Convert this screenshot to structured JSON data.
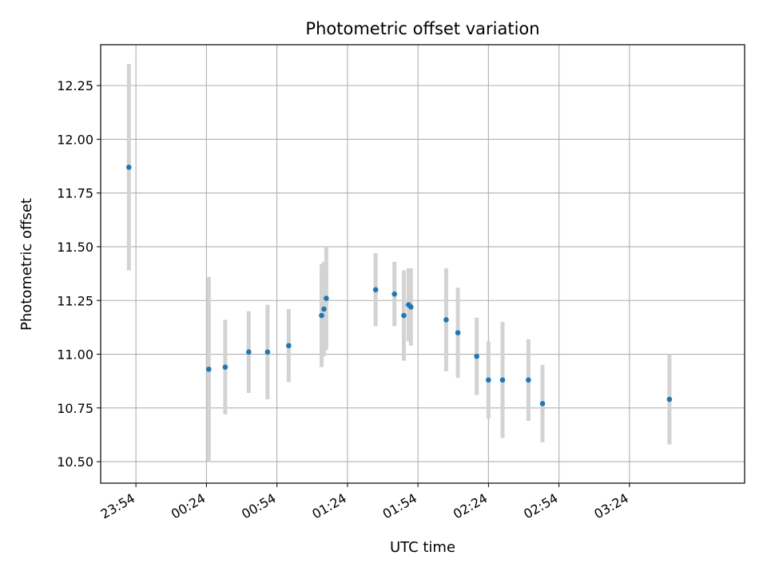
{
  "chart_data": {
    "type": "scatter",
    "title": "Photometric offset variation",
    "xlabel": "UTC time",
    "ylabel": "Photometric offset",
    "grid": true,
    "xlim": [
      "23:39",
      "04:13"
    ],
    "ylim": [
      10.4,
      12.44
    ],
    "x_ticks": [
      "23:54",
      "00:24",
      "00:54",
      "01:24",
      "01:54",
      "02:24",
      "02:54",
      "03:24"
    ],
    "y_ticks": [
      10.5,
      10.75,
      11.0,
      11.25,
      11.5,
      11.75,
      12.0,
      12.25
    ],
    "marker_color": "#1f77b4",
    "errorbar_color": "#d3d3d3",
    "points": [
      {
        "time": "23:51",
        "value": 11.87,
        "error": 0.48
      },
      {
        "time": "00:25",
        "value": 10.93,
        "error": 0.43
      },
      {
        "time": "00:32",
        "value": 10.94,
        "error": 0.22
      },
      {
        "time": "00:42",
        "value": 11.01,
        "error": 0.19
      },
      {
        "time": "00:50",
        "value": 11.01,
        "error": 0.22
      },
      {
        "time": "00:59",
        "value": 11.04,
        "error": 0.17
      },
      {
        "time": "01:13",
        "value": 11.18,
        "error": 0.24
      },
      {
        "time": "01:14",
        "value": 11.21,
        "error": 0.22
      },
      {
        "time": "01:15",
        "value": 11.26,
        "error": 0.24
      },
      {
        "time": "01:36",
        "value": 11.3,
        "error": 0.17
      },
      {
        "time": "01:44",
        "value": 11.28,
        "error": 0.15
      },
      {
        "time": "01:48",
        "value": 11.18,
        "error": 0.21
      },
      {
        "time": "01:50",
        "value": 11.23,
        "error": 0.17
      },
      {
        "time": "01:51",
        "value": 11.22,
        "error": 0.18
      },
      {
        "time": "02:06",
        "value": 11.16,
        "error": 0.24
      },
      {
        "time": "02:11",
        "value": 11.1,
        "error": 0.21
      },
      {
        "time": "02:19",
        "value": 10.99,
        "error": 0.18
      },
      {
        "time": "02:24",
        "value": 10.88,
        "error": 0.18
      },
      {
        "time": "02:30",
        "value": 10.88,
        "error": 0.27
      },
      {
        "time": "02:41",
        "value": 10.88,
        "error": 0.19
      },
      {
        "time": "02:47",
        "value": 10.77,
        "error": 0.18
      },
      {
        "time": "03:41",
        "value": 10.79,
        "error": 0.21
      }
    ]
  }
}
